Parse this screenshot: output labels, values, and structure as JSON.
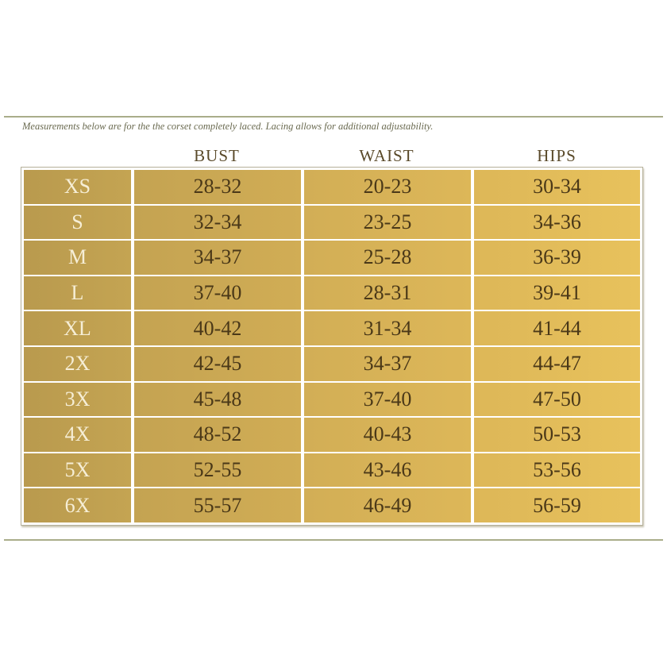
{
  "note": "Measurements below are for the the corset completely laced. Lacing allows for additional adjustability.",
  "columns": [
    "BUST",
    "WAIST",
    "HIPS"
  ],
  "rows": [
    {
      "size": "XS",
      "bust": "28-32",
      "waist": "20-23",
      "hips": "30-34"
    },
    {
      "size": "S",
      "bust": "32-34",
      "waist": "23-25",
      "hips": "34-36"
    },
    {
      "size": "M",
      "bust": "34-37",
      "waist": "25-28",
      "hips": "36-39"
    },
    {
      "size": "L",
      "bust": "37-40",
      "waist": "28-31",
      "hips": "39-41"
    },
    {
      "size": "XL",
      "bust": "40-42",
      "waist": "31-34",
      "hips": "41-44"
    },
    {
      "size": "2X",
      "bust": "42-45",
      "waist": "34-37",
      "hips": "44-47"
    },
    {
      "size": "3X",
      "bust": "45-48",
      "waist": "37-40",
      "hips": "47-50"
    },
    {
      "size": "4X",
      "bust": "48-52",
      "waist": "40-43",
      "hips": "50-53"
    },
    {
      "size": "5X",
      "bust": "52-55",
      "waist": "43-46",
      "hips": "53-56"
    },
    {
      "size": "6X",
      "bust": "55-57",
      "waist": "46-49",
      "hips": "56-59"
    }
  ],
  "colors": {
    "gold_light": "#e8c25c",
    "gold_dark": "#b99a4e",
    "text_dark": "#4a3818",
    "size_text": "#f6eed6"
  }
}
